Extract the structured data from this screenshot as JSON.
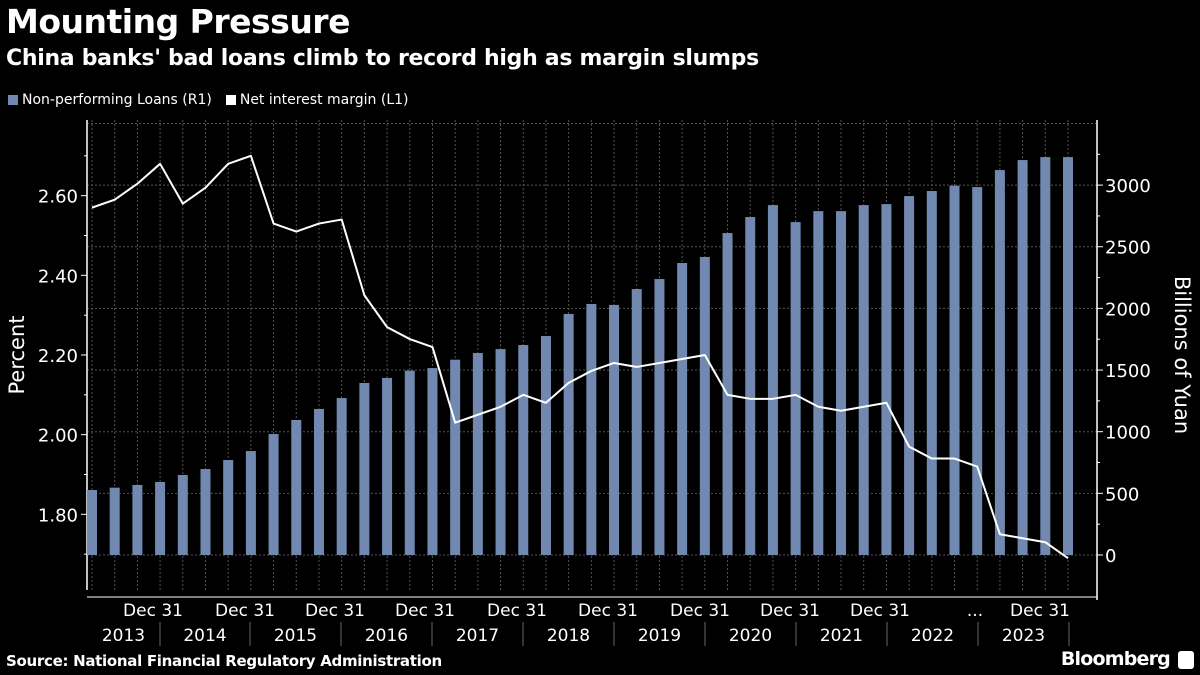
{
  "header": {
    "title": "Mounting Pressure",
    "subtitle": "China banks' bad loans climb to record high as margin slumps"
  },
  "footer": {
    "source": "Source: National Financial Regulatory Administration",
    "brand": "Bloomberg"
  },
  "colors": {
    "background": "#000000",
    "bars": "#7189b0",
    "line": "#ffffff",
    "grid": "#555555"
  },
  "chart_data": {
    "type": "bar+line",
    "title": "Mounting Pressure",
    "subtitle": "China banks' bad loans climb to record high as margin slumps",
    "legend_placement": "top-left",
    "grid": true,
    "x": [
      "2013Q1",
      "2013Q2",
      "2013Q3",
      "2013Q4",
      "2014Q1",
      "2014Q2",
      "2014Q3",
      "2014Q4",
      "2015Q1",
      "2015Q2",
      "2015Q3",
      "2015Q4",
      "2016Q1",
      "2016Q2",
      "2016Q3",
      "2016Q4",
      "2017Q1",
      "2017Q2",
      "2017Q3",
      "2017Q4",
      "2018Q1",
      "2018Q2",
      "2018Q3",
      "2018Q4",
      "2019Q1",
      "2019Q2",
      "2019Q3",
      "2019Q4",
      "2020Q1",
      "2020Q2",
      "2020Q3",
      "2020Q4",
      "2021Q1",
      "2021Q2",
      "2021Q3",
      "2021Q4",
      "2022Q1",
      "2022Q2",
      "2022Q3",
      "2022Q4",
      "2023Q1",
      "2023Q2",
      "2023Q3",
      "2023Q4"
    ],
    "x_tick_labels": [
      "Dec 31",
      "Dec 31",
      "Dec 31",
      "Dec 31",
      "Dec 31",
      "Dec 31",
      "Dec 31",
      "Dec 31",
      "Dec 31",
      "...",
      "Dec 31"
    ],
    "x_year_labels": [
      "2013",
      "2014",
      "2015",
      "2016",
      "2017",
      "2018",
      "2019",
      "2020",
      "2021",
      "2022",
      "2023"
    ],
    "series": [
      {
        "name": "Non-performing Loans (R1)",
        "kind": "bar",
        "axis": "right",
        "color": "#7189b0",
        "values": [
          527,
          546,
          568,
          592,
          649,
          697,
          770,
          843,
          981,
          1095,
          1184,
          1273,
          1395,
          1436,
          1495,
          1516,
          1584,
          1638,
          1670,
          1703,
          1776,
          1955,
          2036,
          2028,
          2157,
          2238,
          2368,
          2417,
          2611,
          2741,
          2838,
          2700,
          2789,
          2789,
          2838,
          2846,
          2911,
          2952,
          2995,
          2984,
          3122,
          3203,
          3227,
          3227
        ]
      },
      {
        "name": "Net interest margin (L1)",
        "kind": "line",
        "axis": "left",
        "color": "#ffffff",
        "values": [
          2.57,
          2.59,
          2.63,
          2.68,
          2.58,
          2.62,
          2.68,
          2.7,
          2.53,
          2.51,
          2.53,
          2.54,
          2.35,
          2.27,
          2.24,
          2.22,
          2.03,
          2.05,
          2.07,
          2.1,
          2.08,
          2.13,
          2.16,
          2.18,
          2.17,
          2.18,
          2.19,
          2.2,
          2.1,
          2.09,
          2.09,
          2.1,
          2.07,
          2.06,
          2.07,
          2.08,
          1.97,
          1.94,
          1.94,
          1.92,
          1.75,
          1.74,
          1.73,
          1.69
        ]
      }
    ],
    "left_axis": {
      "label": "Percent",
      "ticks": [
        "1.80",
        "2.00",
        "2.20",
        "2.40",
        "2.60"
      ],
      "range": [
        1.61,
        2.79
      ]
    },
    "right_axis": {
      "label": "Billions of Yuan",
      "ticks": [
        "0",
        "500",
        "1000",
        "1500",
        "2000",
        "2500",
        "3000"
      ],
      "range": [
        -284,
        3528
      ]
    }
  }
}
